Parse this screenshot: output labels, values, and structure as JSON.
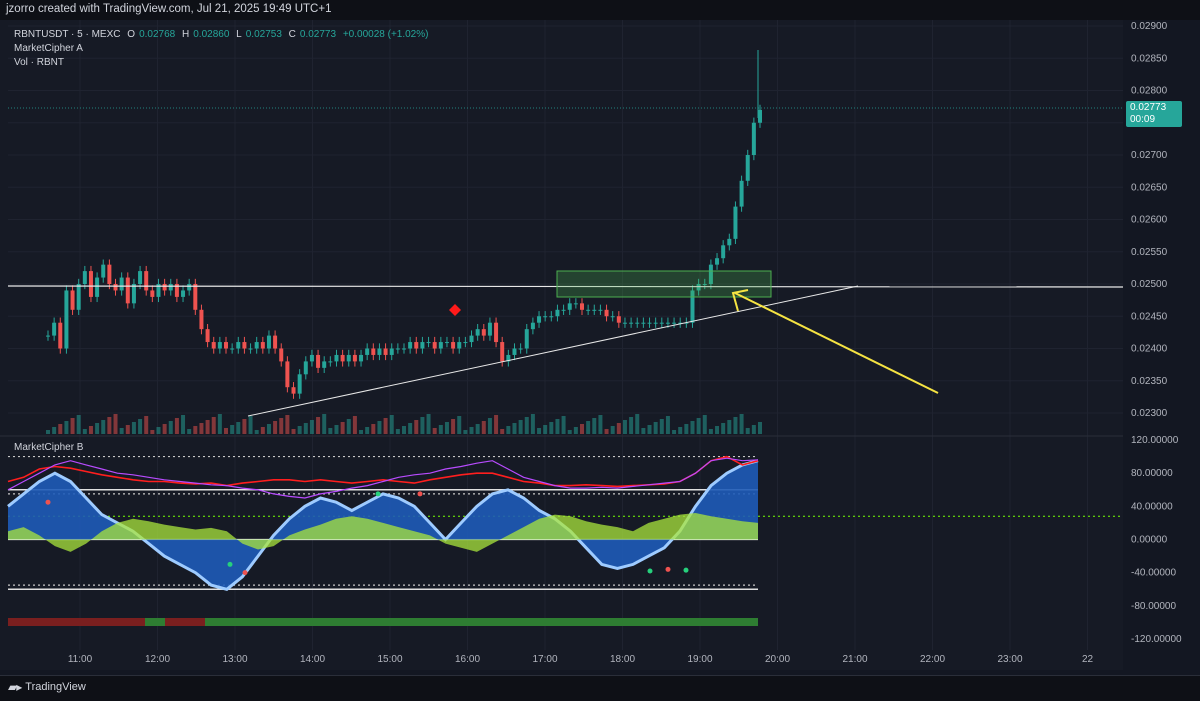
{
  "header": {
    "title": "jzorro created with TradingView.com, Jul 21, 2025 19:49 UTC+1"
  },
  "legend": {
    "symbol": "RBNTUSDT · 5 · MEXC",
    "o_label": "O",
    "o": "0.02768",
    "h_label": "H",
    "h": "0.02860",
    "l_label": "L",
    "l": "0.02753",
    "c_label": "C",
    "c": "0.02773",
    "change": "+0.00028 (+1.02%)",
    "indicator1": "MarketCipher A",
    "indicator2": "Vol · RBNT"
  },
  "subpane": {
    "label": "MarketCipher B"
  },
  "price_tag": {
    "price": "0.02773",
    "countdown": "00:09"
  },
  "price_axis": [
    "0.02900",
    "0.02850",
    "0.02800",
    "0.02750",
    "0.02700",
    "0.02650",
    "0.02600",
    "0.02550",
    "0.02500",
    "0.02450",
    "0.02400",
    "0.02350",
    "0.02300"
  ],
  "osc_axis": [
    "120.00000",
    "80.00000",
    "40.00000",
    "0.00000",
    "-40.00000",
    "-80.00000",
    "-120.00000"
  ],
  "time_axis": [
    "11:00",
    "12:00",
    "13:00",
    "14:00",
    "15:00",
    "16:00",
    "17:00",
    "18:00",
    "19:00",
    "20:00",
    "21:00",
    "22:00",
    "23:00",
    "22"
  ],
  "footer": {
    "brand": "TradingView"
  },
  "colors": {
    "up": "#26a69a",
    "down": "#ef5350",
    "arrow": "#f5e342",
    "zone": "#4caf50"
  },
  "chart_data": {
    "type": "candlestick",
    "symbol": "RBNTUSDT",
    "interval": "5",
    "exchange": "MEXC",
    "ylim": [
      0.0228,
      0.0291
    ],
    "horizontal_level": 0.02496,
    "trendline": {
      "from": [
        "13:10",
        0.02298
      ],
      "to": [
        "21:00",
        0.02497
      ]
    },
    "zone": {
      "from": "17:08",
      "to": "19:55",
      "low": 0.02482,
      "high": 0.02519
    },
    "approx_closes": [
      [
        "10:35",
        0.0245
      ],
      [
        "10:50",
        0.02475
      ],
      [
        "11:00",
        0.0251
      ],
      [
        "11:10",
        0.0253
      ],
      [
        "11:20",
        0.0248
      ],
      [
        "11:35",
        0.02505
      ],
      [
        "11:50",
        0.0251
      ],
      [
        "12:05",
        0.025
      ],
      [
        "12:15",
        0.0245
      ],
      [
        "12:30",
        0.02405
      ],
      [
        "12:50",
        0.02405
      ],
      [
        "13:05",
        0.0241
      ],
      [
        "13:10",
        0.0235
      ],
      [
        "13:20",
        0.0238
      ],
      [
        "13:40",
        0.02375
      ],
      [
        "14:00",
        0.02385
      ],
      [
        "14:30",
        0.02395
      ],
      [
        "15:00",
        0.0241
      ],
      [
        "15:30",
        0.02405
      ],
      [
        "15:50",
        0.0243
      ],
      [
        "16:00",
        0.024
      ],
      [
        "16:20",
        0.02425
      ],
      [
        "16:40",
        0.02455
      ],
      [
        "17:00",
        0.0247
      ],
      [
        "17:30",
        0.02465
      ],
      [
        "17:50",
        0.02455
      ],
      [
        "18:10",
        0.0244
      ],
      [
        "18:40",
        0.0244
      ],
      [
        "18:55",
        0.02445
      ],
      [
        "19:00",
        0.02485
      ],
      [
        "19:10",
        0.025
      ],
      [
        "19:20",
        0.0253
      ],
      [
        "19:30",
        0.02565
      ],
      [
        "19:35",
        0.0261
      ],
      [
        "19:40",
        0.0265
      ],
      [
        "19:45",
        0.027
      ],
      [
        "19:49",
        0.02773
      ]
    ],
    "oscillator": {
      "label": "MarketCipher B",
      "ylim": [
        -120,
        120
      ],
      "levels": [
        100,
        60,
        30,
        0,
        -55,
        -60
      ]
    }
  }
}
